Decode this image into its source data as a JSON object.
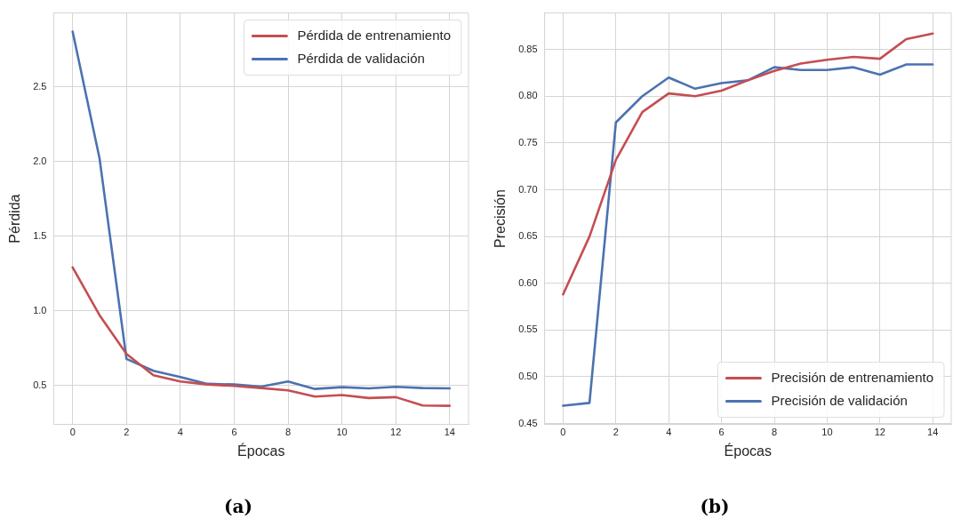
{
  "chart_data": [
    {
      "type": "line",
      "xlabel": "Épocas",
      "ylabel": "Pérdida",
      "x": [
        0,
        1,
        2,
        3,
        4,
        5,
        6,
        7,
        8,
        9,
        10,
        11,
        12,
        13,
        14
      ],
      "xlim": [
        -0.7,
        14.7
      ],
      "xticks": [
        0,
        2,
        4,
        6,
        8,
        10,
        12,
        14
      ],
      "ylim": [
        0.238,
        2.995
      ],
      "yticks": [
        0.5,
        {
          "value": 1,
          "label": "1.0"
        },
        1.5,
        {
          "value": 2,
          "label": "2.0"
        },
        2.5
      ],
      "series": [
        {
          "name": "Pérdida de entrenamiento",
          "color": "#c44e52",
          "values": [
            1.29,
            0.97,
            0.71,
            0.567,
            0.526,
            0.506,
            0.496,
            0.482,
            0.466,
            0.425,
            0.435,
            0.415,
            0.421,
            0.365,
            0.363
          ]
        },
        {
          "name": "Pérdida de validación",
          "color": "#4c72b0",
          "values": [
            2.87,
            2.02,
            0.677,
            0.597,
            0.556,
            0.51,
            0.506,
            0.492,
            0.526,
            0.476,
            0.488,
            0.48,
            0.49,
            0.482,
            0.48
          ]
        }
      ],
      "grid": true,
      "legend": "top right",
      "marker": "none",
      "line_style": "solid",
      "annotations": [
        "(a)"
      ]
    },
    {
      "type": "line",
      "xlabel": "Épocas",
      "ylabel": "Precisión",
      "x": [
        0,
        1,
        2,
        3,
        4,
        5,
        6,
        7,
        8,
        9,
        10,
        11,
        12,
        13,
        14
      ],
      "xlim": [
        -0.7,
        14.7
      ],
      "xticks": [
        0,
        2,
        4,
        6,
        8,
        10,
        12,
        14
      ],
      "ylim": [
        0.449,
        0.889
      ],
      "yticks": [
        0.45,
        {
          "value": 0.5,
          "label": "0.50"
        },
        0.55,
        {
          "value": 0.6,
          "label": "0.60"
        },
        0.65,
        {
          "value": 0.7,
          "label": "0.70"
        },
        0.75,
        {
          "value": 0.8,
          "label": "0.80"
        },
        0.85
      ],
      "series": [
        {
          "name": "Precisión de entrenamiento",
          "color": "#c44e52",
          "values": [
            0.588,
            0.65,
            0.732,
            0.783,
            0.803,
            0.8,
            0.806,
            0.817,
            0.827,
            0.835,
            0.839,
            0.842,
            0.84,
            0.861,
            0.867
          ]
        },
        {
          "name": "Precisión de validación",
          "color": "#4c72b0",
          "values": [
            0.469,
            0.472,
            0.772,
            0.8,
            0.82,
            0.808,
            0.814,
            0.817,
            0.831,
            0.828,
            0.828,
            0.831,
            0.823,
            0.834,
            0.834
          ]
        }
      ],
      "grid": true,
      "legend": "bottom right",
      "marker": "none",
      "line_style": "solid",
      "annotations": [
        "(b)"
      ]
    }
  ]
}
